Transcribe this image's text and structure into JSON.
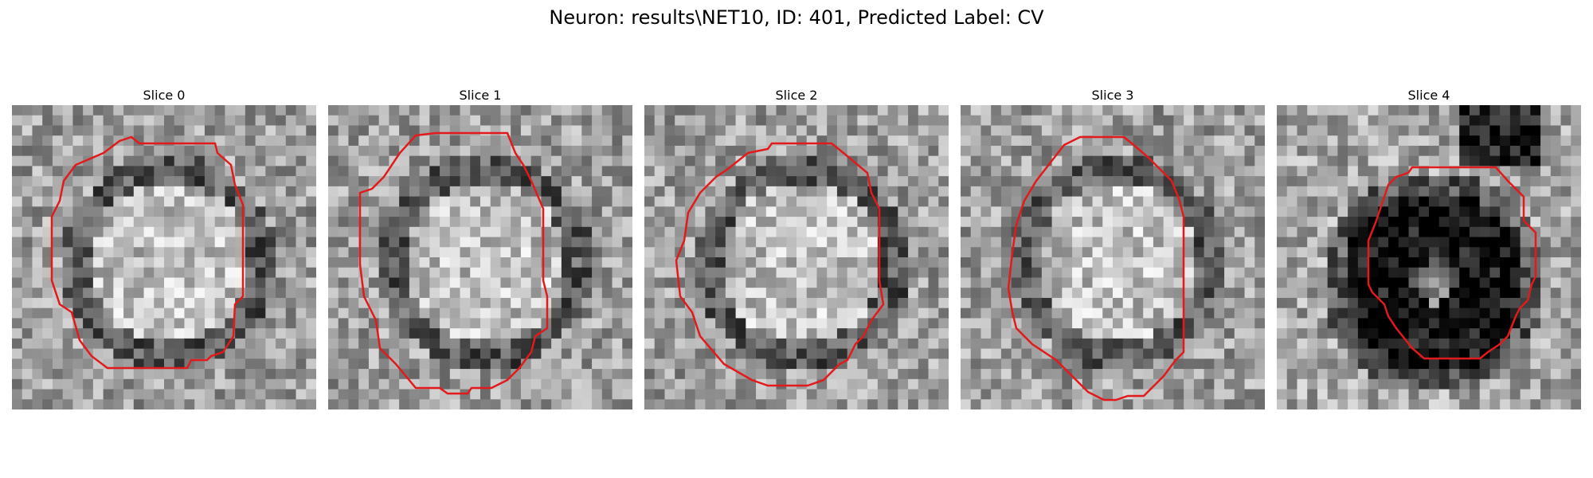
{
  "figure": {
    "title": "Neuron: results\\NET10, ID: 401, Predicted Label: CV"
  },
  "panels": [
    {
      "title": "Slice 0",
      "seed": 11,
      "dark_center": false
    },
    {
      "title": "Slice 1",
      "seed": 23,
      "dark_center": false
    },
    {
      "title": "Slice 2",
      "seed": 37,
      "dark_center": false
    },
    {
      "title": "Slice 3",
      "seed": 41,
      "dark_center": false
    },
    {
      "title": "Slice 4",
      "seed": 59,
      "dark_center": true
    }
  ],
  "colors": {
    "contour": "#e31a1c",
    "background": "#ffffff"
  }
}
